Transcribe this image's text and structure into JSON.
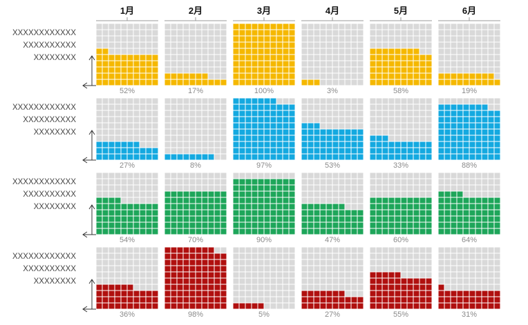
{
  "chart_data": {
    "type": "waffle",
    "columns": [
      "1月",
      "2月",
      "3月",
      "4月",
      "5月",
      "6月"
    ],
    "rows": [
      {
        "label": [
          "XXXXXXXXXXXX",
          "XXXXXXXXXX",
          "XXXXXXXX"
        ],
        "color": "#F5B800",
        "values": [
          52,
          17,
          100,
          3,
          58,
          19
        ],
        "display": [
          "52%",
          "17%",
          "100%",
          "3%",
          "58%",
          "19%"
        ]
      },
      {
        "label": [
          "XXXXXXXXXXXX",
          "XXXXXXXXXX",
          "XXXXXXXX"
        ],
        "color": "#14A9E0",
        "values": [
          27,
          8,
          97,
          53,
          33,
          88
        ],
        "display": [
          "27%",
          "8%",
          "97%",
          "53%",
          "33%",
          "88%"
        ]
      },
      {
        "label": [
          "XXXXXXXXXXXX",
          "XXXXXXXXXX",
          "XXXXXXXX"
        ],
        "color": "#1EA65A",
        "values": [
          54,
          70,
          90,
          47,
          60,
          64
        ],
        "display": [
          "54%",
          "70%",
          "90%",
          "47%",
          "60%",
          "64%"
        ]
      },
      {
        "label": [
          "XXXXXXXXXXXX",
          "XXXXXXXXXX",
          "XXXXXXXX"
        ],
        "color": "#B0100F",
        "values": [
          36,
          98,
          5,
          27,
          55,
          31
        ],
        "display": [
          "36%",
          "98%",
          "5%",
          "27%",
          "55%",
          "31%"
        ]
      }
    ],
    "grid": {
      "rows": 10,
      "cols": 10,
      "empty_color": "#D9D9D9"
    }
  }
}
